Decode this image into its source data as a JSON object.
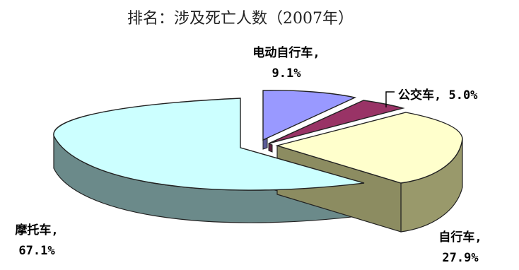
{
  "chart_data": {
    "type": "pie",
    "title": "排名：涉及死亡人数（2007年）",
    "categories": [
      "电动自行车",
      "公交车",
      "自行车",
      "摩托车"
    ],
    "values": [
      9.1,
      5.0,
      27.9,
      67.1
    ],
    "value_labels": [
      "9.1%",
      "5.0%",
      "27.9%",
      "67.1%"
    ],
    "label_format": "{category}, {value}",
    "exploded": true,
    "three_d": true,
    "legend": "none",
    "colors": [
      "#9999FF",
      "#993366",
      "#FFFFCC",
      "#CCFFFF"
    ],
    "side_colors": [
      "#5C5C99",
      "#5C1F3D",
      "#99996B",
      "#6B8A8A"
    ]
  },
  "labels": {
    "ebike_line1": "电动自行车,",
    "ebike_line2": "9.1%",
    "bus_line1": "公交车, 5.0%",
    "bike_line1": "自行车,",
    "bike_line2": "27.9%",
    "moto_line1": "摩托车,",
    "moto_line2": "67.1%"
  }
}
